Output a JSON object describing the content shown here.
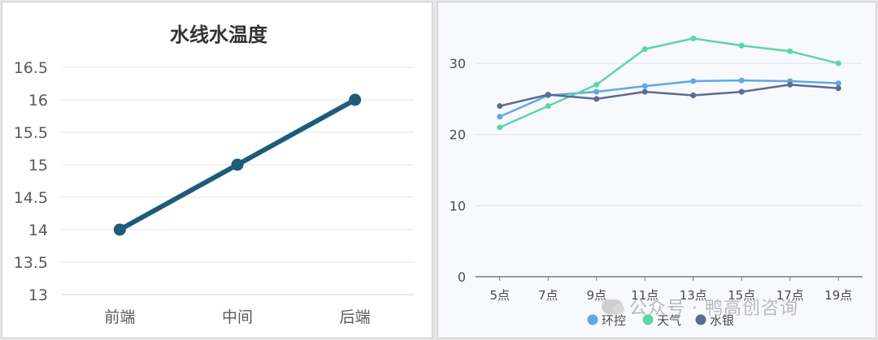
{
  "chart_data": [
    {
      "type": "line",
      "title": "水线水温度",
      "categories": [
        "前端",
        "中间",
        "后端"
      ],
      "series": [
        {
          "values": [
            14,
            15,
            16
          ],
          "color": "#1e5b7a"
        }
      ],
      "ylim": [
        13,
        16.5
      ],
      "yticks": [
        "13",
        "13.5",
        "14",
        "14.5",
        "15",
        "15.5",
        "16",
        "16.5"
      ],
      "grid": true,
      "legend": "none"
    },
    {
      "type": "line",
      "categories": [
        "5点",
        "7点",
        "9点",
        "11点",
        "13点",
        "15点",
        "17点",
        "19点"
      ],
      "series": [
        {
          "name": "环控",
          "color": "#5fa8e6",
          "values": [
            22.5,
            25.5,
            26,
            26.8,
            27.5,
            27.6,
            27.5,
            27.2
          ]
        },
        {
          "name": "天气",
          "color": "#5cd6a6",
          "values": [
            21,
            24,
            27,
            32,
            33.5,
            32.5,
            31.7,
            30
          ]
        },
        {
          "name": "水银",
          "color": "#5c6b91",
          "values": [
            24,
            25.6,
            25,
            26,
            25.5,
            26,
            27,
            26.5
          ]
        }
      ],
      "ylim": [
        0,
        34
      ],
      "yticks": [
        "0",
        "10",
        "20",
        "30"
      ],
      "grid": true,
      "legend": "bottom"
    }
  ],
  "watermark": "公众号 · 鸭高创咨询"
}
